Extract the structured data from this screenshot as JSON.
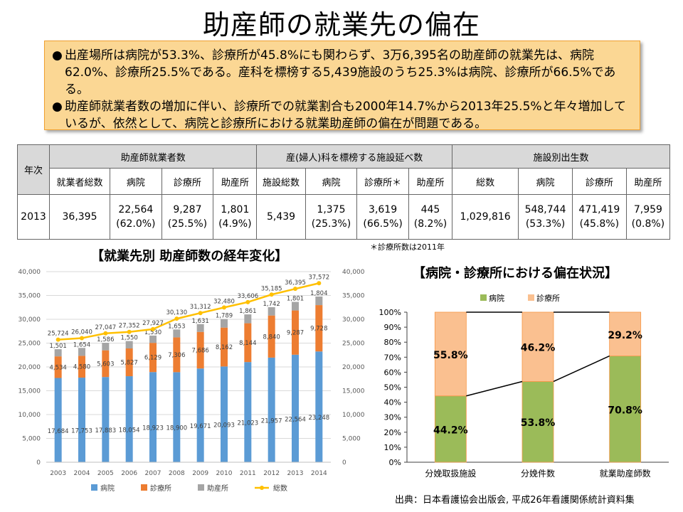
{
  "title": "助産師の就業先の偏在",
  "notes": [
    "出産場所は病院が53.3%、診療所が45.8%にも関わらず、3万6,395名の助産師の就業先は、病院62.0%、診療所25.5%である。産科を標榜する5,439施設のうち25.3%は病院、診療所が66.5%である。",
    "助産師就業者数の増加に伴い、診療所での就業割合も2000年14.7%から2013年25.5%と年々増加しているが、依然として、病院と診療所における就業助産師の偏在が問題である。"
  ],
  "table": {
    "year_header": "年次",
    "group1": "助産師就業者数",
    "group2": "産(婦人)科を標榜する施設延べ数",
    "group3": "施設別出生数",
    "cols": [
      "就業者総数",
      "病院",
      "診療所",
      "助産所",
      "施設総数",
      "病院",
      "診療所＊",
      "助産所",
      "総数",
      "病院",
      "診療所",
      "助産所"
    ],
    "row": {
      "year": "2013",
      "cells": [
        [
          "36,395",
          ""
        ],
        [
          "22,564",
          "(62.0%)"
        ],
        [
          "9,287",
          "(25.5%)"
        ],
        [
          "1,801",
          "(4.9%)"
        ],
        [
          "5,439",
          ""
        ],
        [
          "1,375",
          "(25.3%)"
        ],
        [
          "3,619",
          "(66.5%)"
        ],
        [
          "445",
          "(8.2%)"
        ],
        [
          "1,029,816",
          ""
        ],
        [
          "548,744",
          "(53.3%)"
        ],
        [
          "471,419",
          "(45.8%)"
        ],
        [
          "7,959",
          "(0.8%)"
        ]
      ]
    }
  },
  "table_note": "＊診療所数は2011年",
  "source": "出典：日本看護協会出版会, 平成26年看護関係統計資料集",
  "chart_data": [
    {
      "type": "bar",
      "title": "【就業先別 助産師数の経年変化】",
      "categories": [
        "2003",
        "2004",
        "2005",
        "2006",
        "2007",
        "2008",
        "2009",
        "2010",
        "2011",
        "2012",
        "2013",
        "2014"
      ],
      "ylim": [
        0,
        40000
      ],
      "yticks": [
        "0",
        "5,000",
        "10,000",
        "15,000",
        "20,000",
        "25,000",
        "30,000",
        "35,000",
        "40,000"
      ],
      "series": [
        {
          "name": "病院",
          "color": "#5b9bd5",
          "values": [
            17684,
            17753,
            17883,
            18054,
            18923,
            18900,
            19671,
            20093,
            21023,
            21957,
            22564,
            23248
          ]
        },
        {
          "name": "診療所",
          "color": "#ed7d31",
          "values": [
            4534,
            4580,
            5603,
            5827,
            6129,
            7306,
            7686,
            8162,
            8144,
            8840,
            9287,
            9728
          ]
        },
        {
          "name": "助産所",
          "color": "#a5a5a5",
          "values": [
            1501,
            1654,
            1586,
            1550,
            1530,
            1653,
            1631,
            1789,
            1861,
            1742,
            1801,
            1804
          ]
        },
        {
          "name": "総数",
          "color": "#ffc000",
          "values": [
            25724,
            26040,
            27047,
            27352,
            27927,
            30130,
            31312,
            32480,
            33606,
            35185,
            36395,
            37572
          ]
        }
      ]
    },
    {
      "type": "bar",
      "title": "【病院・診療所における偏在状況】",
      "categories": [
        "分娩取扱施設",
        "分娩件数",
        "就業助産師数"
      ],
      "yticks": [
        "0%",
        "10%",
        "20%",
        "30%",
        "40%",
        "50%",
        "60%",
        "70%",
        "80%",
        "90%",
        "100%"
      ],
      "series": [
        {
          "name": "病院",
          "color": "#9bbb59",
          "values": [
            44.2,
            53.8,
            70.8
          ],
          "labels": [
            "44.2%",
            "53.8%",
            "70.8%"
          ]
        },
        {
          "name": "診療所",
          "color": "#fac090",
          "values": [
            55.8,
            46.2,
            29.2
          ],
          "labels": [
            "55.8%",
            "46.2%",
            "29.2%"
          ]
        }
      ]
    }
  ]
}
